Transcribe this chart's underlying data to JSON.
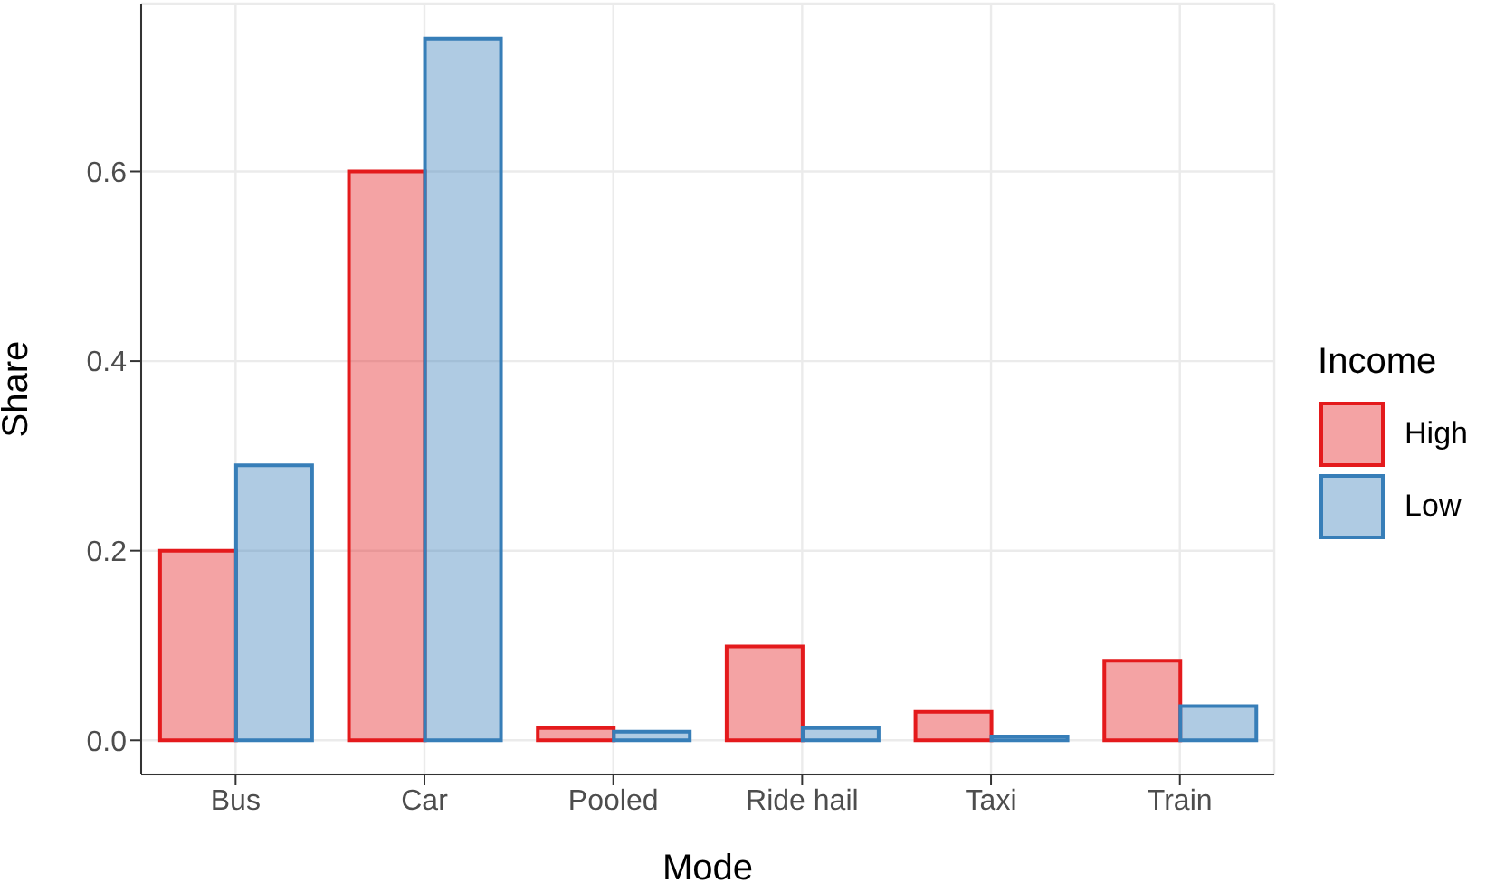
{
  "chart_data": {
    "type": "bar",
    "xlabel": "Mode",
    "ylabel": "Share",
    "legend_title": "Income",
    "categories": [
      "Bus",
      "Car",
      "Pooled",
      "Ride hail",
      "Taxi",
      "Train"
    ],
    "series": [
      {
        "name": "High",
        "color": "#e41a1c",
        "values": [
          0.2,
          0.6,
          0.013,
          0.099,
          0.03,
          0.084
        ]
      },
      {
        "name": "Low",
        "color": "#377eb8",
        "values": [
          0.29,
          0.74,
          0.009,
          0.013,
          0.004,
          0.036
        ]
      }
    ],
    "ylim": [
      -0.036,
      0.777
    ],
    "yticks": [
      {
        "value": 0,
        "label": "0.0"
      },
      0.2,
      0.4,
      0.6
    ],
    "grid": true,
    "legend": "right"
  }
}
